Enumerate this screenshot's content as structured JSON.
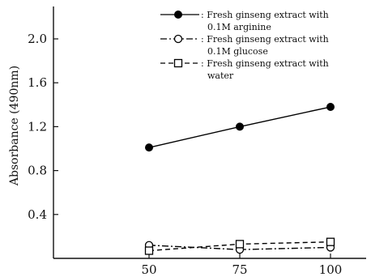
{
  "chart_data": {
    "type": "line",
    "ylabel": "Absorbance (490nm)",
    "xlabel": "",
    "x": [
      50,
      75,
      100
    ],
    "xticks": [
      "50",
      "75",
      "100"
    ],
    "ylim": [
      0.0,
      2.1
    ],
    "yticks": [
      "0.4",
      "0.8",
      "1.2",
      "1.6",
      "2.0"
    ],
    "grid": false,
    "legend_position": "top-right",
    "series": [
      {
        "name_lines": [
          ": Fresh ginseng extract with",
          "0.1M arginine"
        ],
        "marker": "filled-circle",
        "line_style": "solid",
        "values": [
          1.01,
          1.2,
          1.38
        ]
      },
      {
        "name_lines": [
          ": Fresh ginseng extract with",
          "0.1M glucose"
        ],
        "marker": "open-circle",
        "line_style": "dash-dot",
        "values": [
          0.12,
          0.08,
          0.1
        ]
      },
      {
        "name_lines": [
          ": Fresh ginseng extract with",
          "water"
        ],
        "marker": "open-square",
        "line_style": "dashed",
        "values": [
          0.07,
          0.13,
          0.15
        ]
      }
    ]
  }
}
